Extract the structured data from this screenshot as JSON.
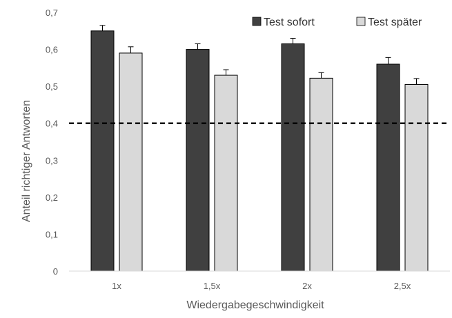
{
  "chart_data": {
    "type": "bar",
    "categories": [
      "1x",
      "1,5x",
      "2x",
      "2,5x"
    ],
    "series": [
      {
        "name": "Test sofort",
        "values": [
          0.65,
          0.6,
          0.615,
          0.56
        ],
        "errors": [
          0.015,
          0.015,
          0.015,
          0.018
        ],
        "color": "#404040"
      },
      {
        "name": "Test später",
        "values": [
          0.59,
          0.53,
          0.522,
          0.505
        ],
        "errors": [
          0.017,
          0.015,
          0.015,
          0.016
        ],
        "color": "#d9d9d9"
      }
    ],
    "xlabel": "Wiedergabegeschwindigkeit",
    "ylabel": "Anteil richtiger Antworten",
    "ylim": [
      0,
      0.7
    ],
    "yticks": [
      "0",
      "0,1",
      "0,2",
      "0,3",
      "0,4",
      "0,5",
      "0,6",
      "0,7"
    ],
    "reference_line": {
      "value": 0.4,
      "style": "dashed",
      "color": "#000000"
    },
    "grid": false,
    "legend": "top-right"
  }
}
